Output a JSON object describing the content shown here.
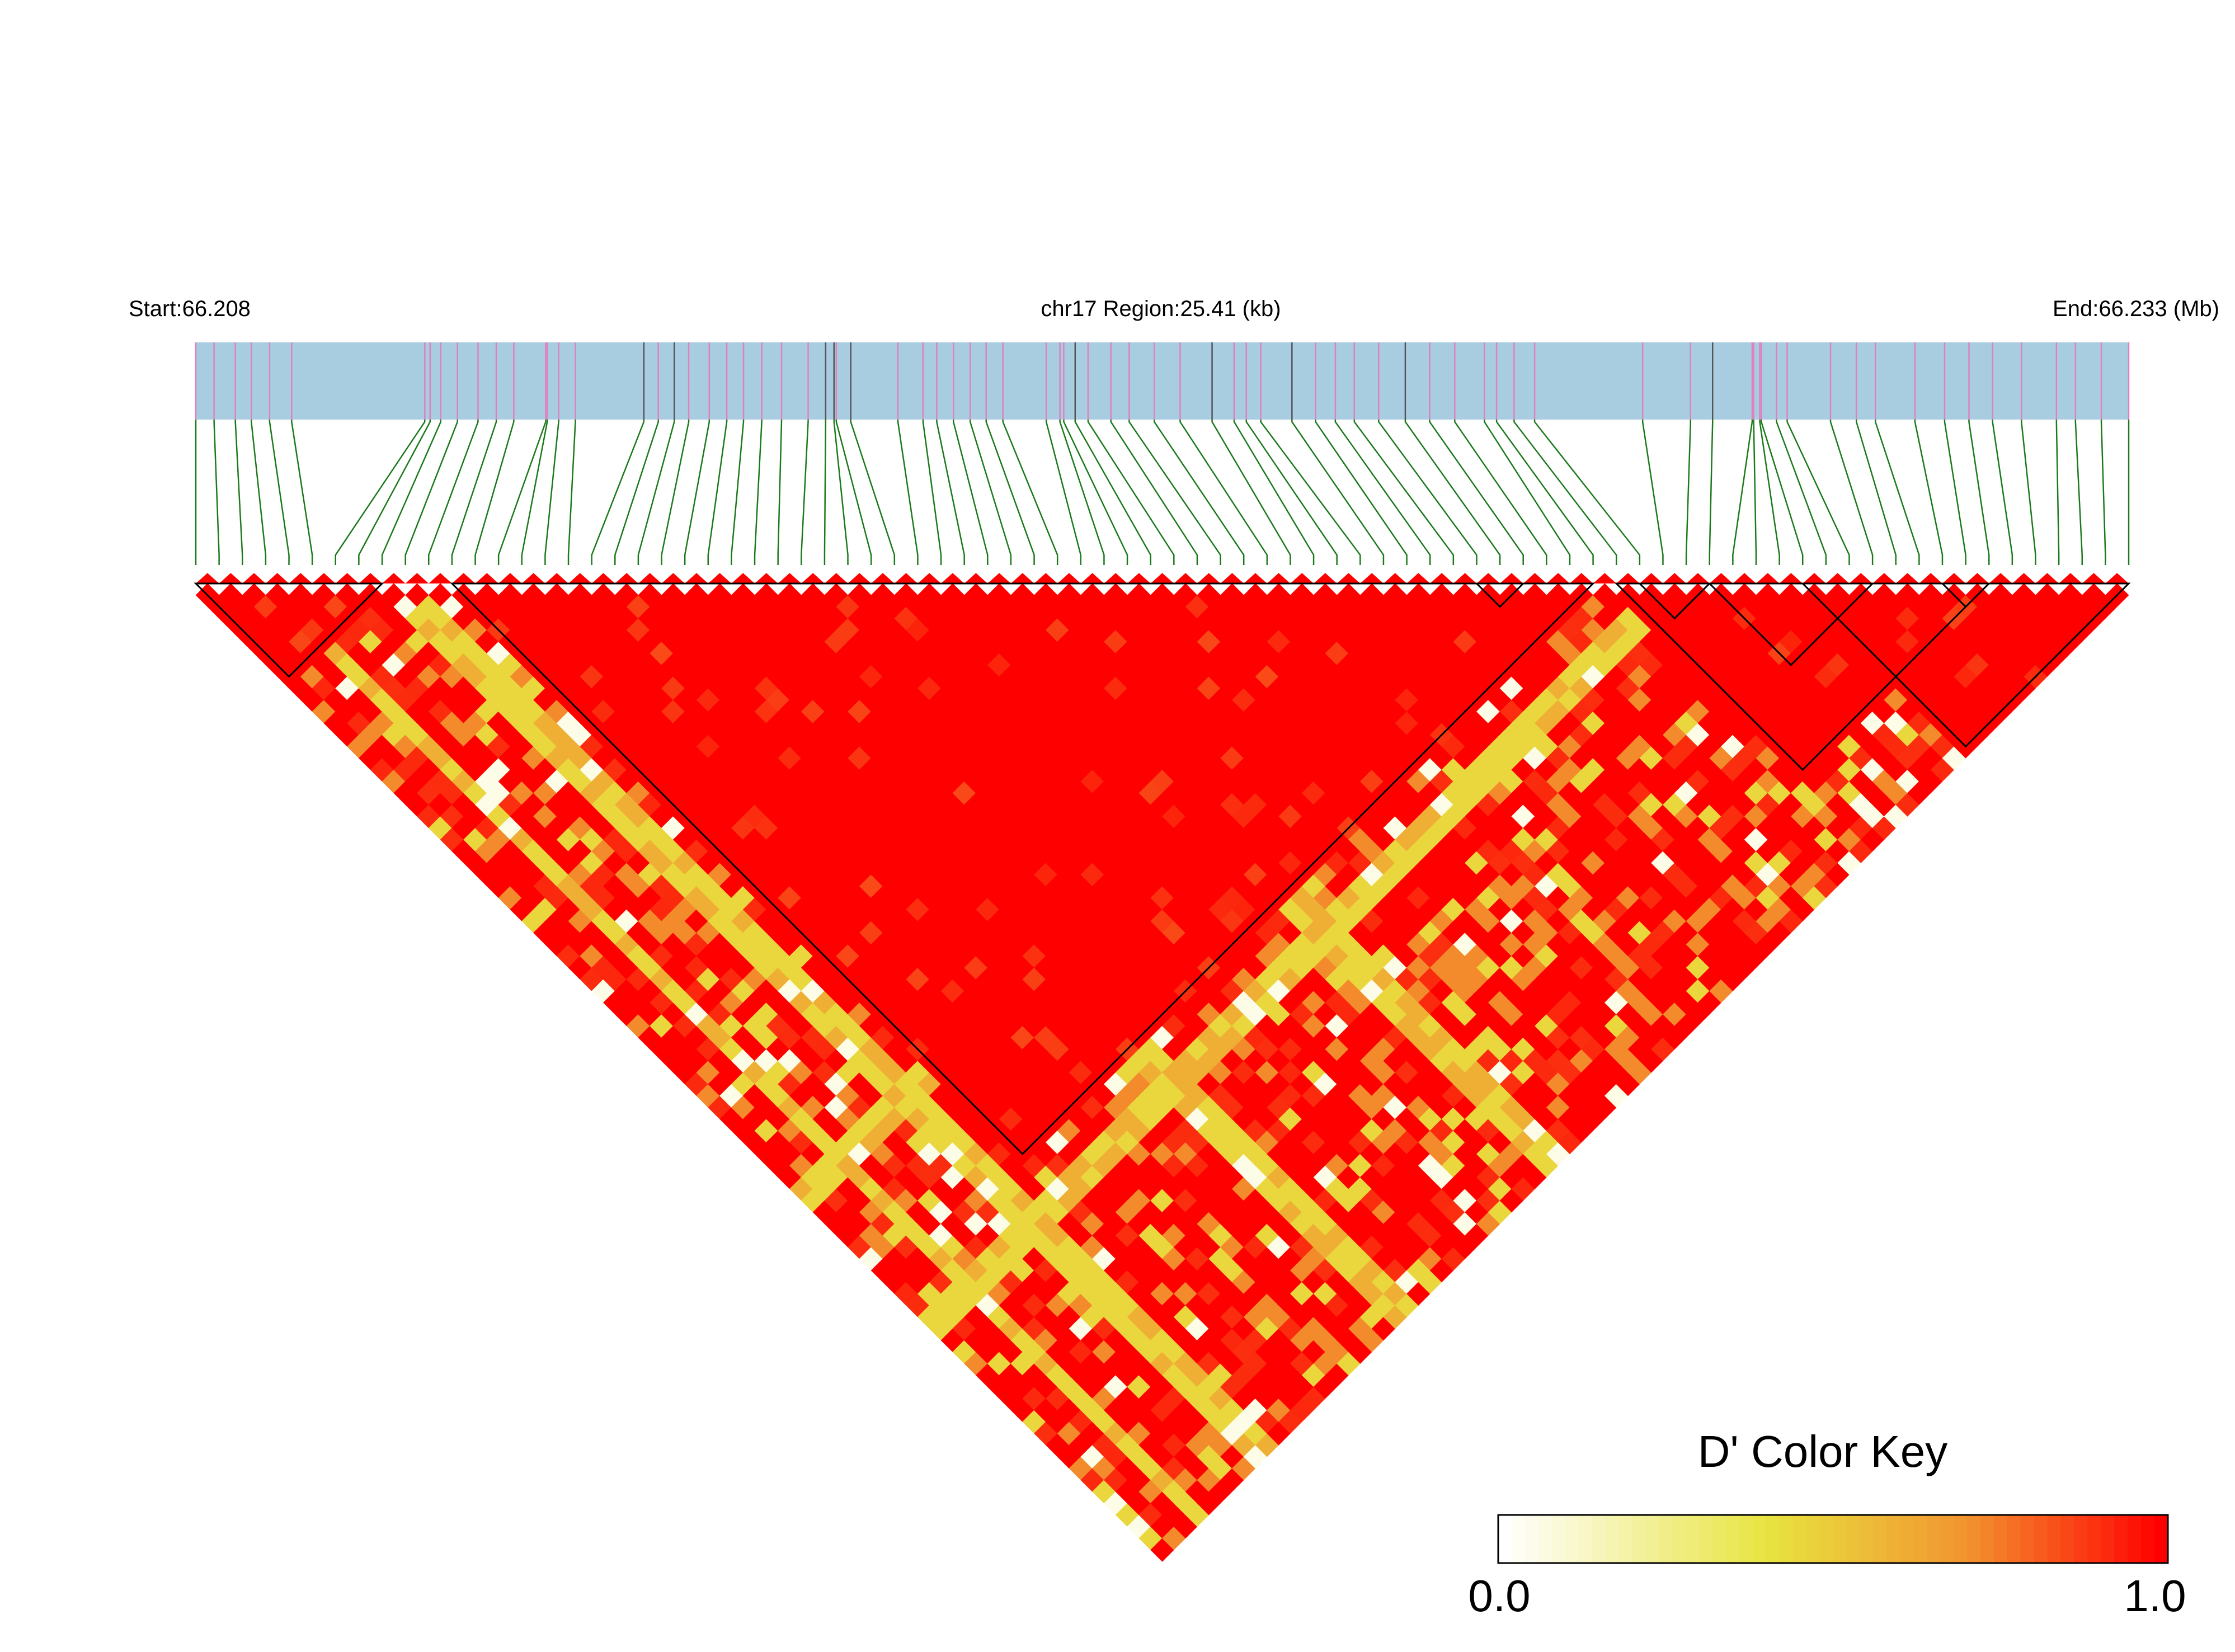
{
  "chart_data": {
    "type": "heatmap",
    "subtype": "LD triangle (linkage disequilibrium)",
    "chromosome": "chr17",
    "header": {
      "start_label": "Start:66.208",
      "region_label": "chr17 Region:25.41 (kb)",
      "end_label": "End:66.233 (Mb)"
    },
    "region": {
      "start_mb": 66.208,
      "end_mb": 66.233,
      "length_kb": 25.41
    },
    "snp_count": 84,
    "snp_positions_kb": [
      0.0,
      0.24,
      0.52,
      0.73,
      0.97,
      1.26,
      3.01,
      3.08,
      3.22,
      3.44,
      3.71,
      3.95,
      4.18,
      4.6,
      4.62,
      4.77,
      4.99,
      5.89,
      6.08,
      6.29,
      6.48,
      6.75,
      6.98,
      7.2,
      7.44,
      7.7,
      8.05,
      8.28,
      8.39,
      8.42,
      8.61,
      9.23,
      9.56,
      9.74,
      9.96,
      10.18,
      10.39,
      10.61,
      11.18,
      11.36,
      11.41,
      11.56,
      11.73,
      12.03,
      12.27,
      12.6,
      12.94,
      13.36,
      13.65,
      13.81,
      14.0,
      14.41,
      14.72,
      14.98,
      15.23,
      15.55,
      15.9,
      16.22,
      16.55,
      16.94,
      17.1,
      17.33,
      17.6,
      19.02,
      19.65,
      19.94,
      20.46,
      20.48,
      20.56,
      20.58,
      20.78,
      20.92,
      21.49,
      21.83,
      22.08,
      22.6,
      22.99,
      23.31,
      23.62,
      24.0,
      24.46,
      24.71,
      25.05,
      25.41
    ],
    "grey_marker_indices": [
      17,
      19,
      27,
      28,
      30,
      41,
      47,
      51,
      56,
      65
    ],
    "haplotype_blocks": [
      {
        "block": 1,
        "from_snp": 1,
        "to_snp": 9
      },
      {
        "block": 2,
        "from_snp": 12,
        "to_snp": 61
      },
      {
        "block": 3,
        "from_snp": 62,
        "to_snp": 78
      },
      {
        "block": 4,
        "from_snp": 56,
        "to_snp": 58
      },
      {
        "block": 5,
        "from_snp": 63,
        "to_snp": 66
      },
      {
        "block": 6,
        "from_snp": 66,
        "to_snp": 73
      },
      {
        "block": 7,
        "from_snp": 76,
        "to_snp": 78
      },
      {
        "block": 8,
        "from_snp": 70,
        "to_snp": 84
      }
    ],
    "value_scale": "D'",
    "color_scale": {
      "min": 0.0,
      "max": 1.0,
      "colors": [
        "#ffffff",
        "#e8e440",
        "#f29530",
        "#ff0000"
      ]
    },
    "colors": {
      "track_fill": "#a8cde0",
      "snp_tick": "#e080c0",
      "snp_tick_grey": "#555555",
      "connector": "#1a7a1a",
      "block_outline": "#000000"
    },
    "notes_on_values": "Cells near the diagonal are almost all at D' = 1.0 (red); lighter yellow/white cells appear scattered, concentrated along diagonal bands.",
    "legend": {
      "title": "D' Color Key",
      "min_label": "0.0",
      "max_label": "1.0",
      "placement": "bottom-right"
    }
  }
}
